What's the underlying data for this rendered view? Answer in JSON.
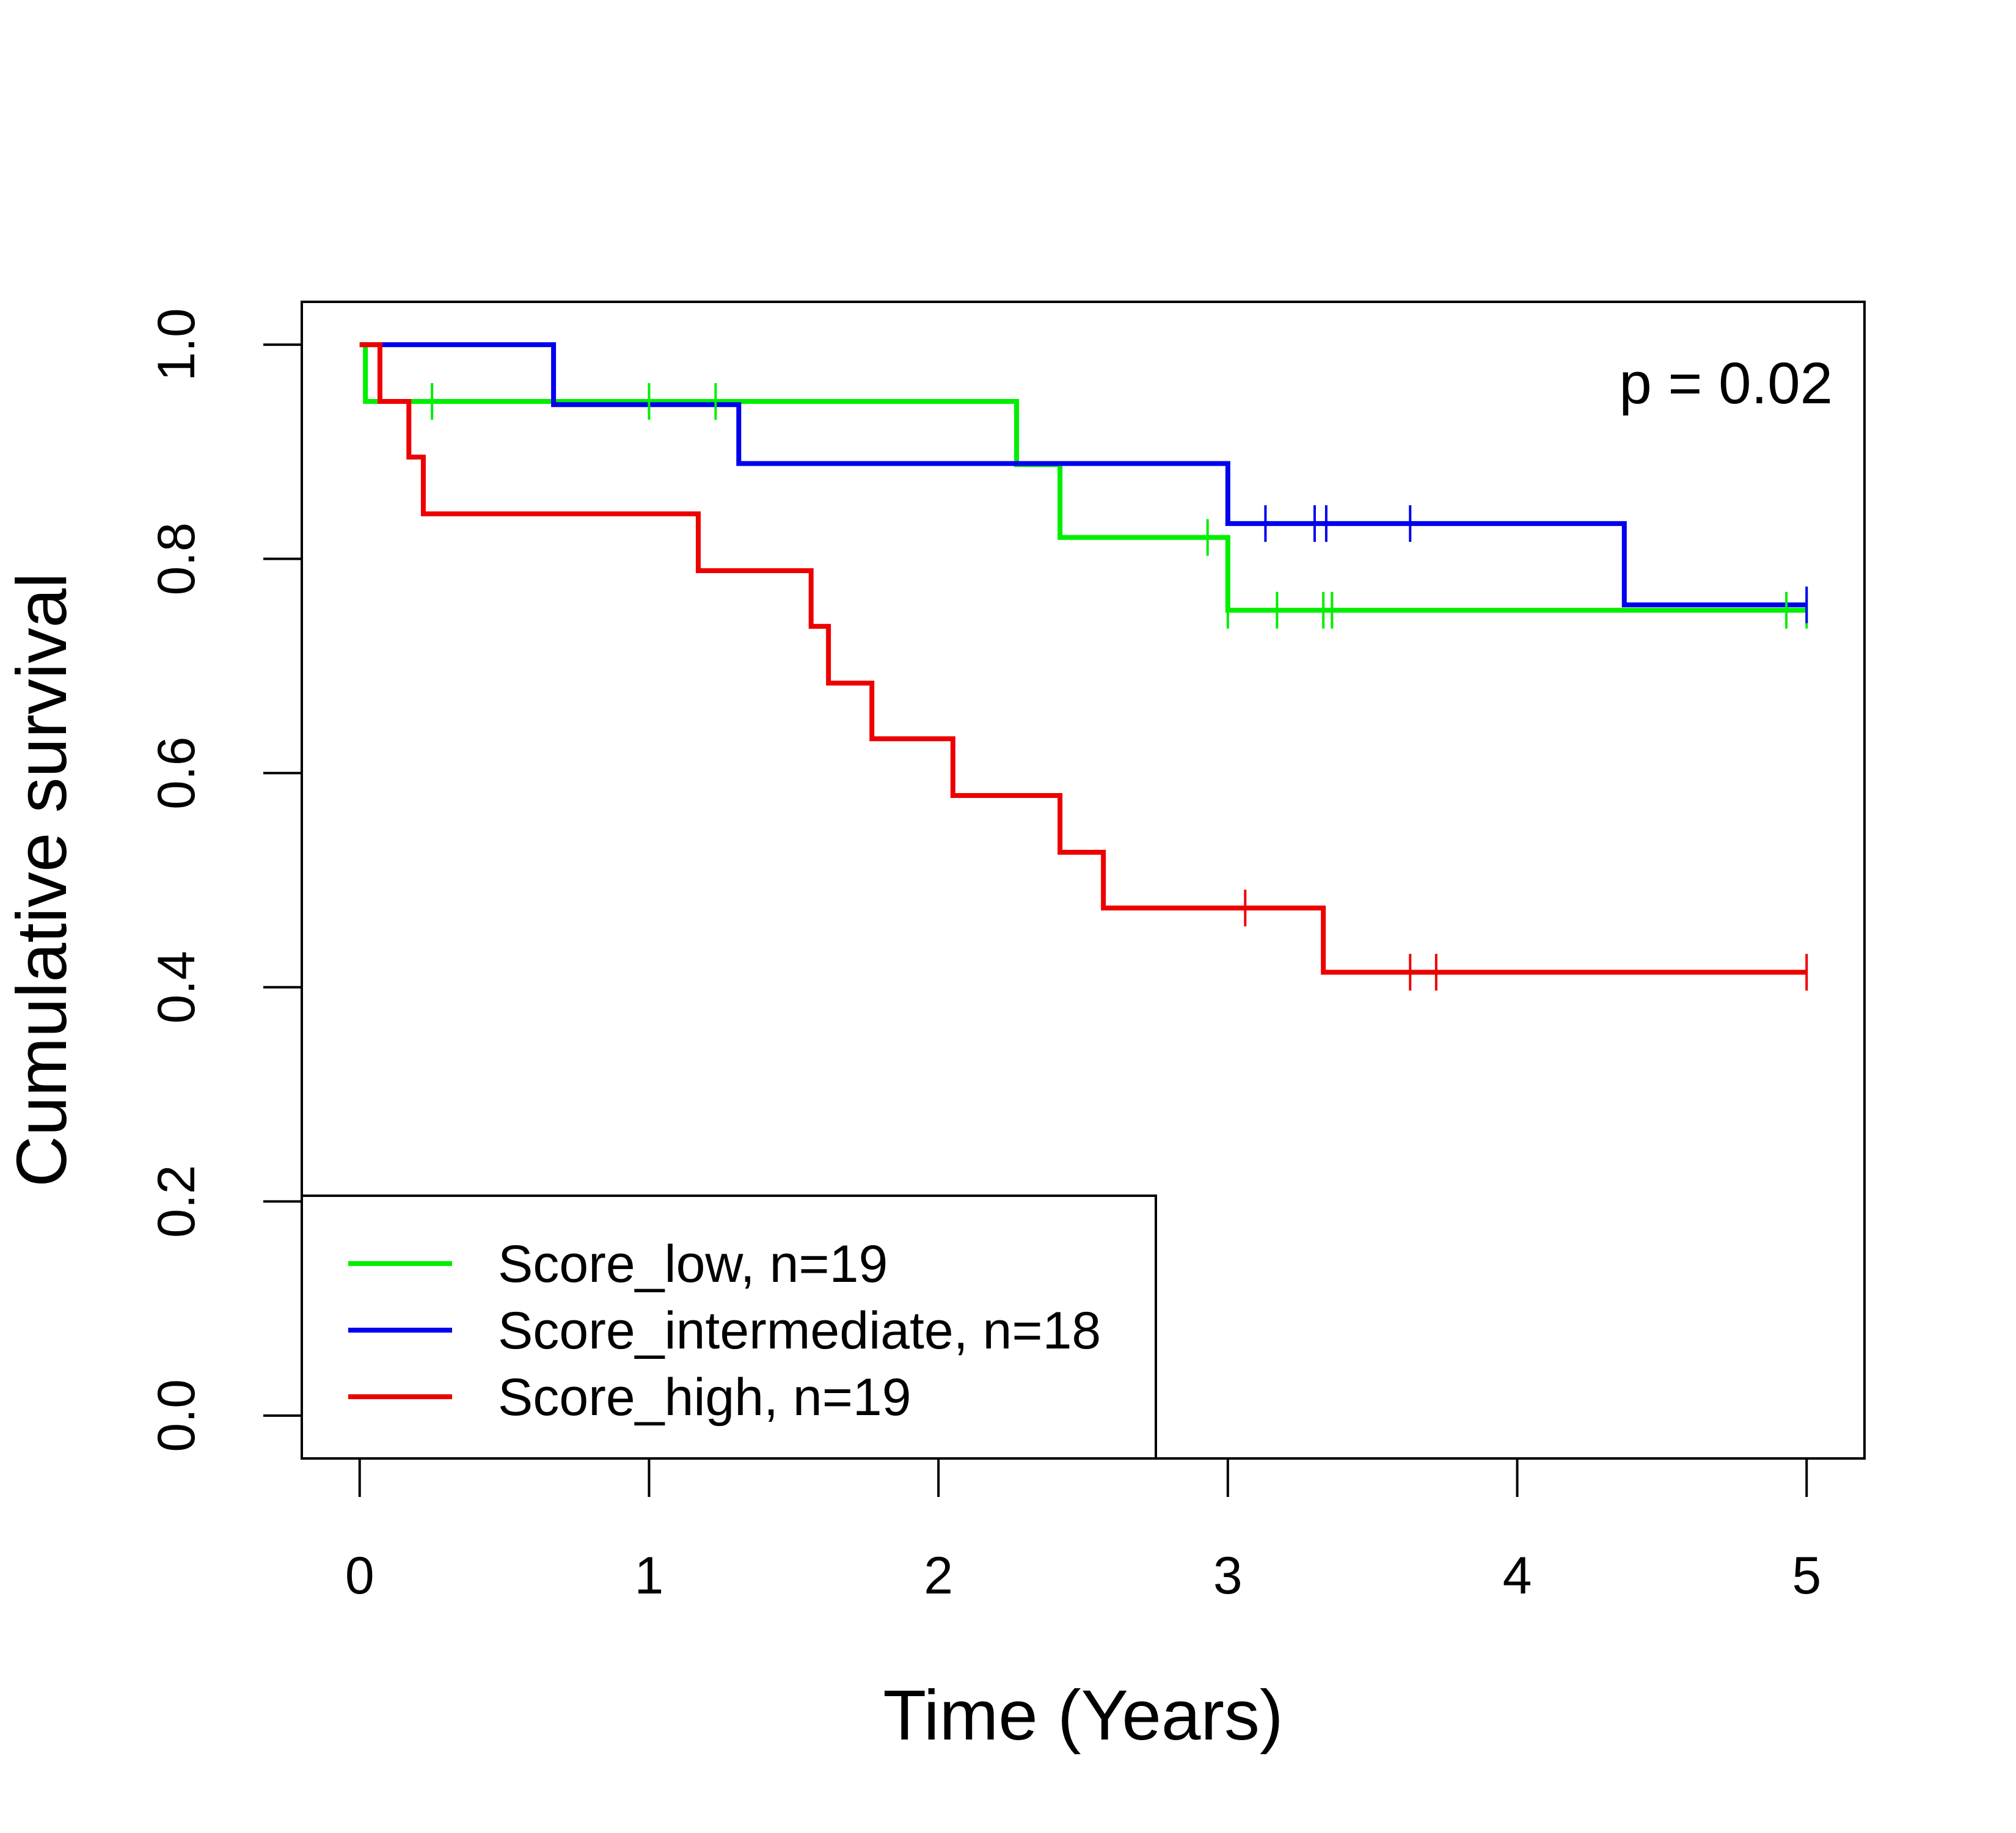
{
  "chart_data": {
    "type": "line",
    "title": "",
    "xlabel": "Time (Years)",
    "ylabel": "Cumulative survival",
    "xlim": [
      -0.2,
      5.2
    ],
    "ylim": [
      -0.04,
      1.04
    ],
    "x_ticks": [
      0,
      1,
      2,
      3,
      4,
      5
    ],
    "y_ticks": [
      0.0,
      0.2,
      0.4,
      0.6,
      0.8,
      1.0
    ],
    "x_tick_labels": [
      "0",
      "1",
      "2",
      "3",
      "4",
      "5"
    ],
    "y_tick_labels": [
      "0.0",
      "0.2",
      "0.4",
      "0.6",
      "0.8",
      "1.0"
    ],
    "annotation": "p = 0.02",
    "legend_position": "bottom-left",
    "series": [
      {
        "name": "Score_low, n=19",
        "color": "#00ee00",
        "steps": [
          [
            0,
            1.0
          ],
          [
            0.02,
            0.947
          ],
          [
            2.27,
            0.888
          ],
          [
            2.42,
            0.82
          ],
          [
            3.0,
            0.752
          ],
          [
            5.0,
            0.752
          ]
        ],
        "censor_x": [
          0.25,
          1.0,
          1.23,
          2.93,
          3.0,
          3.17,
          3.33,
          3.36,
          4.93,
          5.0
        ]
      },
      {
        "name": "Score_intermediate, n=18",
        "color": "#0000ee",
        "steps": [
          [
            0,
            1.0
          ],
          [
            0.67,
            0.944
          ],
          [
            1.31,
            0.889
          ],
          [
            3.0,
            0.833
          ],
          [
            4.37,
            0.757
          ],
          [
            5.0,
            0.757
          ]
        ],
        "censor_x": [
          3.13,
          3.3,
          3.34,
          3.63,
          5.0
        ]
      },
      {
        "name": "Score_high, n=19",
        "color": "#ee0000",
        "steps": [
          [
            0,
            1.0
          ],
          [
            0.07,
            0.947
          ],
          [
            0.17,
            0.895
          ],
          [
            0.22,
            0.842
          ],
          [
            1.17,
            0.789
          ],
          [
            1.56,
            0.737
          ],
          [
            1.62,
            0.684
          ],
          [
            1.77,
            0.632
          ],
          [
            2.05,
            0.579
          ],
          [
            2.42,
            0.526
          ],
          [
            2.57,
            0.474
          ],
          [
            3.33,
            0.414
          ],
          [
            5.0,
            0.414
          ]
        ],
        "censor_x": [
          3.06,
          3.63,
          3.72,
          5.0
        ]
      }
    ]
  }
}
